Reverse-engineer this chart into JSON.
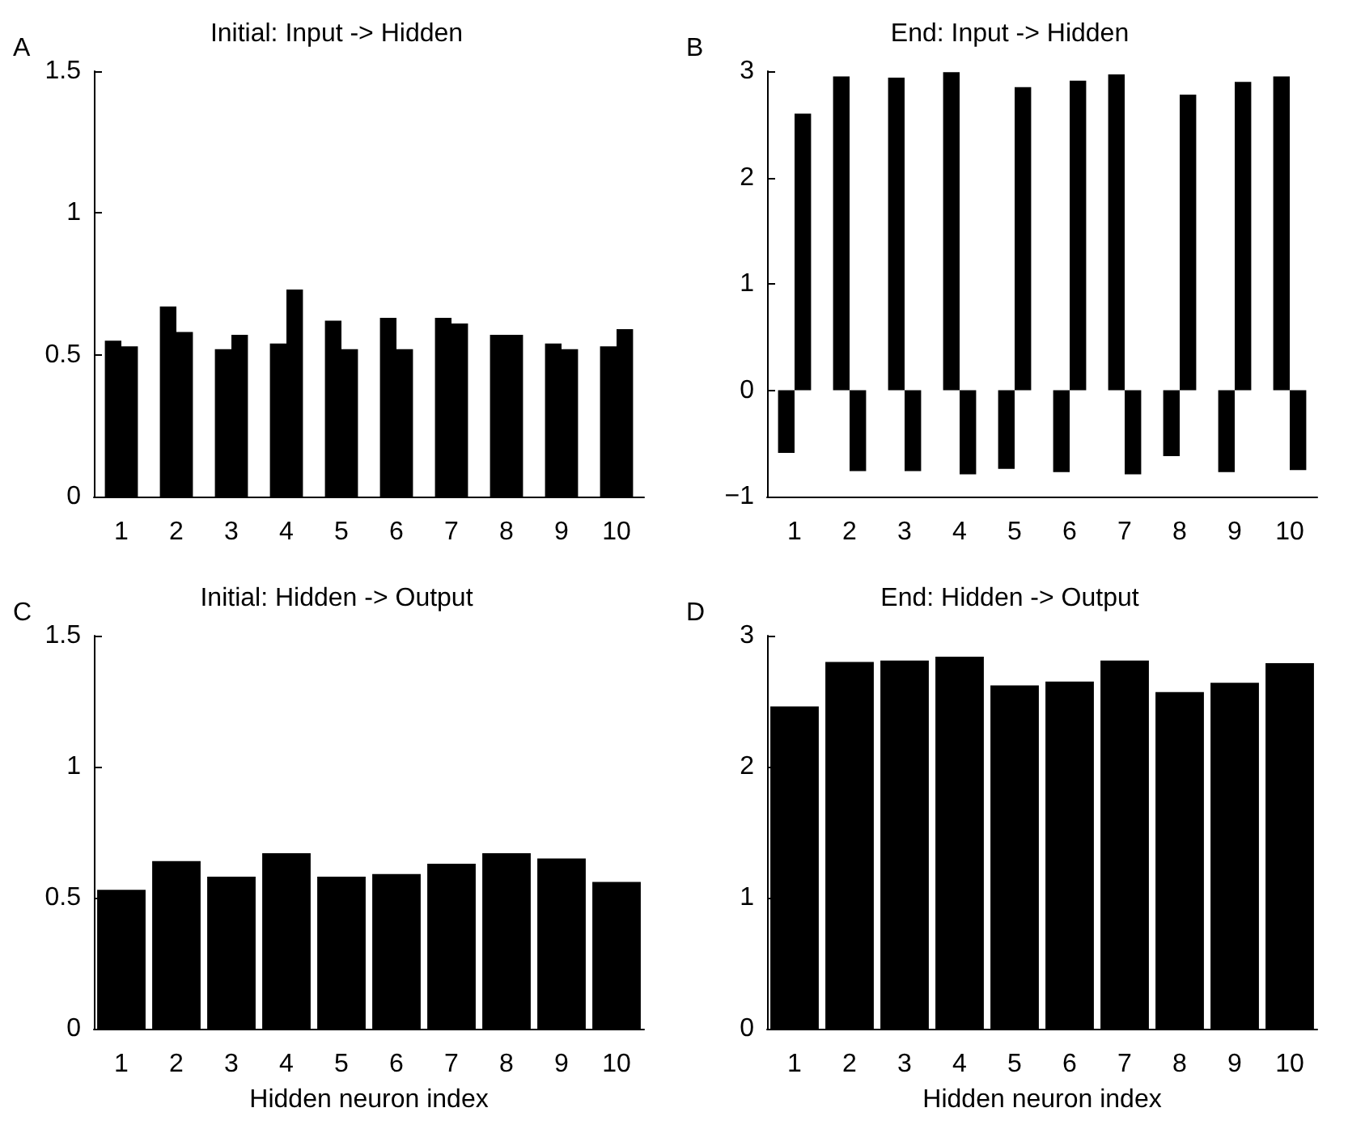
{
  "chart_data": [
    {
      "type": "bar",
      "title": "Initial: Input -> Hidden",
      "annotations": [
        "A"
      ],
      "categories": [
        "1",
        "2",
        "3",
        "4",
        "5",
        "6",
        "7",
        "8",
        "9",
        "10"
      ],
      "series": [
        {
          "color": "#000000",
          "values": [
            0.55,
            0.67,
            0.52,
            0.54,
            0.62,
            0.63,
            0.63,
            0.57,
            0.54,
            0.53
          ]
        },
        {
          "color": "#000000",
          "values": [
            0.53,
            0.58,
            0.57,
            0.73,
            0.52,
            0.52,
            0.61,
            0.57,
            0.52,
            0.59
          ]
        }
      ],
      "ylim": [
        0,
        1.5
      ],
      "yticks": [
        0,
        0.5,
        1,
        1.5
      ]
    },
    {
      "type": "bar",
      "title": "End: Input -> Hidden",
      "annotations": [
        "B"
      ],
      "categories": [
        "1",
        "2",
        "3",
        "4",
        "5",
        "6",
        "7",
        "8",
        "9",
        "10"
      ],
      "series": [
        {
          "color": "#000000",
          "values": [
            -0.59,
            2.95,
            2.94,
            2.99,
            -0.74,
            -0.77,
            2.97,
            -0.62,
            -0.77,
            2.95
          ]
        },
        {
          "color": "#000000",
          "values": [
            2.6,
            -0.76,
            -0.76,
            -0.79,
            2.85,
            2.91,
            -0.79,
            2.78,
            2.9,
            -0.75
          ]
        }
      ],
      "ylim": [
        -1,
        3
      ],
      "yticks": [
        {
          "value": -1,
          "label": "−1"
        },
        0,
        1,
        2,
        3
      ]
    },
    {
      "type": "bar",
      "title": "Initial: Hidden -> Output",
      "annotations": [
        "C"
      ],
      "xlabel": "Hidden neuron index",
      "categories": [
        "1",
        "2",
        "3",
        "4",
        "5",
        "6",
        "7",
        "8",
        "9",
        "10"
      ],
      "series": [
        {
          "color": "#000000",
          "values": [
            0.53,
            0.64,
            0.58,
            0.67,
            0.58,
            0.59,
            0.63,
            0.67,
            0.65,
            0.56
          ]
        }
      ],
      "ylim": [
        0,
        1.5
      ],
      "yticks": [
        0,
        0.5,
        1,
        1.5
      ]
    },
    {
      "type": "bar",
      "title": "End: Hidden -> Output",
      "annotations": [
        "D"
      ],
      "xlabel": "Hidden neuron index",
      "categories": [
        "1",
        "2",
        "3",
        "4",
        "5",
        "6",
        "7",
        "8",
        "9",
        "10"
      ],
      "series": [
        {
          "color": "#000000",
          "values": [
            2.46,
            2.8,
            2.81,
            2.84,
            2.62,
            2.65,
            2.81,
            2.57,
            2.64,
            2.79
          ]
        }
      ],
      "ylim": [
        0,
        3
      ],
      "yticks": [
        0,
        1,
        2,
        3
      ]
    }
  ]
}
